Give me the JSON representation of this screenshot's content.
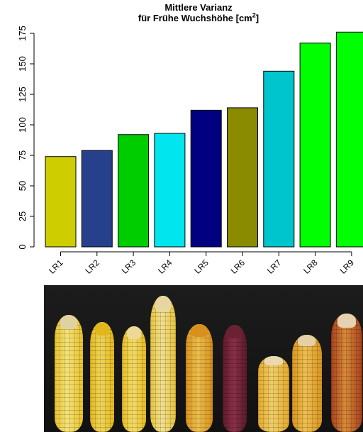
{
  "chart_data": {
    "type": "bar",
    "title_line1": "Mittlere Varianz",
    "title_line2": "für Frühe Wuchshöhe [cm",
    "title_sup": "2",
    "title_end": "]",
    "categories": [
      "LR1",
      "LR2",
      "LR3",
      "LR4",
      "LR5",
      "LR6",
      "LR7",
      "LR8",
      "LR9"
    ],
    "values": [
      74,
      79,
      92,
      93,
      112,
      114,
      144,
      167,
      176
    ],
    "colors": [
      "#CDCD00",
      "#27408B",
      "#00CD00",
      "#00E5EE",
      "#000080",
      "#8B8B00",
      "#00C5CD",
      "#00FF00",
      "#00FF00"
    ],
    "yticks": [
      0,
      25,
      50,
      75,
      100,
      125,
      150,
      175
    ],
    "ylim": [
      0,
      180
    ],
    "grid": false,
    "legend": "none"
  },
  "photo": {
    "subject": "maize-cobs",
    "cobs": [
      {
        "name": "cob-1",
        "base": "#e8c22a",
        "light": "#f4e27a",
        "tip": "#e0d2a0"
      },
      {
        "name": "cob-2",
        "base": "#e2b71c",
        "light": "#f0d55a",
        "tip": "#e2b71c"
      },
      {
        "name": "cob-3",
        "base": "#e6bb20",
        "light": "#f3dc6a",
        "tip": "#ecd99a"
      },
      {
        "name": "cob-4",
        "base": "#e4c23a",
        "light": "#f2e090",
        "tip": "#e8d6a0"
      },
      {
        "name": "cob-5",
        "base": "#d9901c",
        "light": "#ecc04e",
        "tip": "#d9901c"
      },
      {
        "name": "cob-6",
        "base": "#5a1a2a",
        "light": "#8a3048",
        "tip": "#6a2232"
      },
      {
        "name": "cob-7",
        "base": "#e3a82a",
        "light": "#f0cf6a",
        "tip": "#ead9b0"
      },
      {
        "name": "cob-8",
        "base": "#d8941e",
        "light": "#eebf52",
        "tip": "#e4cfa6"
      },
      {
        "name": "cob-9",
        "base": "#a6401c",
        "light": "#d88a38",
        "tip": "#e6d2b2"
      }
    ]
  }
}
